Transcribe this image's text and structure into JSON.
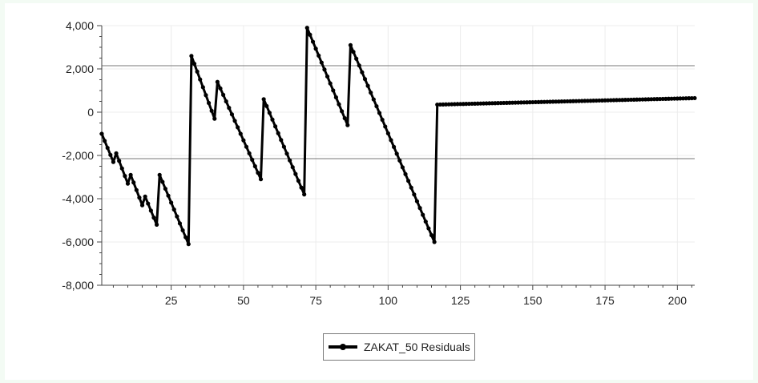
{
  "chart_data": {
    "type": "line",
    "title": "",
    "xlabel": "",
    "ylabel": "",
    "xlim": [
      1,
      206
    ],
    "ylim": [
      -8000,
      4000
    ],
    "x_ticks": [
      25,
      50,
      75,
      100,
      125,
      150,
      175,
      200
    ],
    "y_ticks": [
      4000,
      2000,
      0,
      -2000,
      -4000,
      -6000,
      -8000
    ],
    "y_tick_labels": [
      "4,000",
      "2,000",
      "0",
      "-2,000",
      "-4,000",
      "-6,000",
      "-8,000"
    ],
    "reference_lines": [
      2150,
      -2150
    ],
    "legend_position": "bottom-center",
    "series": [
      {
        "name": "ZAKAT_50 Residuals",
        "color": "#000000",
        "points": [
          [
            1,
            -1000
          ],
          [
            5,
            -2300
          ],
          [
            6,
            -1900
          ],
          [
            10,
            -3300
          ],
          [
            11,
            -2900
          ],
          [
            15,
            -4300
          ],
          [
            16,
            -3900
          ],
          [
            20,
            -5200
          ],
          [
            21,
            -2900
          ],
          [
            31,
            -6100
          ],
          [
            32,
            2600
          ],
          [
            40,
            -300
          ],
          [
            41,
            1400
          ],
          [
            56,
            -3100
          ],
          [
            57,
            600
          ],
          [
            71,
            -3800
          ],
          [
            72,
            3900
          ],
          [
            86,
            -600
          ],
          [
            87,
            3100
          ],
          [
            116,
            -6000
          ],
          [
            117,
            350
          ],
          [
            206,
            650
          ]
        ]
      }
    ]
  },
  "legend": {
    "label": "ZAKAT_50 Residuals"
  }
}
